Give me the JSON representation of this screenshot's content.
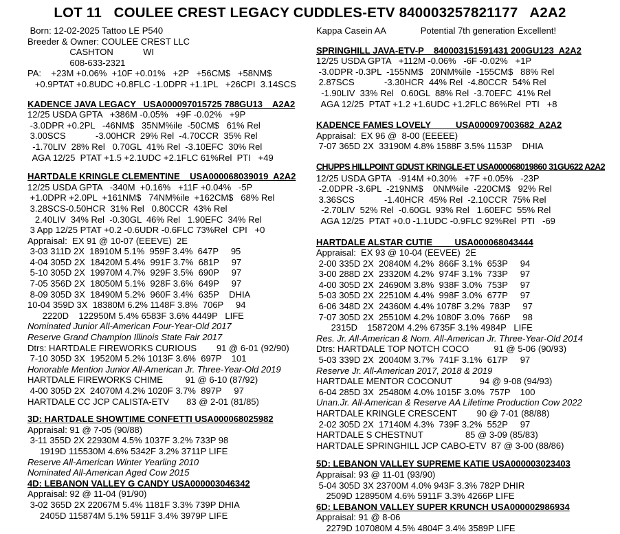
{
  "page": {
    "title": "LOT 11   COULEE CREST LEGACY CUDDLES-ETV 840003257821177   A2A2"
  },
  "columns": {
    "left": [
      {
        "name": "animal-info-block",
        "gap": 0,
        "lines": [
          {
            "text": " Born: 12-02-2025 Tattoo LE P540",
            "style": "normal"
          },
          {
            "text": "Breeder & Owner: COULEE CREST LLC",
            "style": "normal"
          },
          {
            "text": "                 CASHTON            WI",
            "style": "normal"
          },
          {
            "text": "                 608-633-2321",
            "style": "normal"
          },
          {
            "text": "PA:    +23M +0.06%  +10F +0.01%   +2P   +56CM$   +58NM$",
            "style": "normal"
          },
          {
            "text": "   +0.9PTAT +0.8UDC +0.8FLC -1.0DPR +1.1PL   +26CPI  3.14SCS",
            "style": "normal"
          }
        ]
      },
      {
        "name": "sire-section",
        "gap": 13,
        "lines": [
          {
            "text": "KADENCE JAVA LEGACY   USA000097015725 788GU13    A2A2",
            "style": "header"
          },
          {
            "text": "12/25 USDA GPTA   +386M -0.05%   +9F -0.02%   +9P",
            "style": "normal"
          },
          {
            "text": " -3.0DPR +0.2PL   -46NM$   35NM%ile  -50CM$   61% Rel",
            "style": "normal"
          },
          {
            "text": " 3.00SCS            -3.00HCR  29% Rel  -4.70CCR  35% Rel",
            "style": "normal"
          },
          {
            "text": "  -1.70LIV  28% Rel   0.70GL  41% Rel  -3.10EFC  30% Rel",
            "style": "normal"
          },
          {
            "text": "  AGA 12/25  PTAT +1.5 +2.1UDC +2.1FLC 61%Rel  PTI   +49",
            "style": "normal"
          }
        ]
      },
      {
        "name": "dam-section",
        "gap": 12,
        "lines": [
          {
            "text": "HARTDALE KRINGLE CLEMENTINE    USA000068039019  A2A2",
            "style": "header"
          },
          {
            "text": "12/25 USDA GPTA   -340M  +0.16%   +11F +0.04%   -5P",
            "style": "normal"
          },
          {
            "text": " +1.0DPR +2.0PL  +161NM$   74NM%ile  +162CM$   68% Rel",
            "style": "normal"
          },
          {
            "text": " 3.28SCS-0.50HCR  31% Rel   0.80CCR  43% Rel",
            "style": "normal"
          },
          {
            "text": "   2.40LIV  34% Rel  -0.30GL  46% Rel   1.90EFC  34% Rel",
            "style": "normal"
          },
          {
            "text": " 3 App 12/25 PTAT +0.2 -0.6UDR -0.6FLC 73%Rel  CPI   +0",
            "style": "normal"
          },
          {
            "text": "Appraisal:  EX 91 @ 10-07 (EEEVE)  2E",
            "style": "normal"
          },
          {
            "text": " 3-03 311D 2X  18910M 5.1%  959F 3.4%  647P     95",
            "style": "normal"
          },
          {
            "text": " 4-04 305D 2X  18420M 5.4%  991F 3.7%  681P     97",
            "style": "normal"
          },
          {
            "text": " 5-10 305D 2X  19970M 4.7%  929F 3.5%  690P     97",
            "style": "normal"
          },
          {
            "text": " 7-05 356D 2X  18050M 5.1%  928F 3.6%  649P     97",
            "style": "normal"
          },
          {
            "text": " 8-09 305D 3X  18490M 5.2%  960F 3.4%  635P    DHIA",
            "style": "normal"
          },
          {
            "text": "10-04 359D 3X  18380M 6.2% 1148F 3.8%  706P     94",
            "style": "normal"
          },
          {
            "text": "      2220D    122950M 5.4% 6583F 3.6% 4449P   LIFE",
            "style": "normal"
          },
          {
            "text": "Nominated Junior All-American Four-Year-Old 2017",
            "style": "italic"
          },
          {
            "text": "Reserve Grand Champion Illinois State Fair 2017",
            "style": "italic"
          },
          {
            "text": "Dtrs: HARTDALE FIREWORKS CURIOUS        91 @ 6-01 (92/90)",
            "style": "normal"
          },
          {
            "text": " 7-10 305D 3X  19520M 5.2% 1013F 3.6%  697P    101",
            "style": "normal"
          },
          {
            "text": "Honorable Mention Junior All-American Jr. Three-Year-Old 2019",
            "style": "italic"
          },
          {
            "text": "HARTDALE FIREWORKS CHIME         91 @ 6-10 (87/92)",
            "style": "normal"
          },
          {
            "text": " 4-00 305D 2X  24070M 4.2% 1020F 3.7%  897P     97",
            "style": "normal"
          },
          {
            "text": "HARTDALE CC JCP CALISTA-ETV       83 @ 2-01 (81/85)",
            "style": "normal"
          }
        ]
      },
      {
        "name": "third-dam-section",
        "gap": 10,
        "lines": [
          {
            "text": "3D: HARTDALE SHOWTIME CONFETTI USA000068025982",
            "style": "header"
          },
          {
            "text": "Appraisal: 91 @ 7-05 (90/88)",
            "style": "normal"
          },
          {
            "text": " 3-11 355D 2X 22930M 4.5% 1037F 3.2% 733P 98",
            "style": "normal"
          },
          {
            "text": "     1919D 115530M 4.6% 5342F 3.2% 3711P LIFE",
            "style": "normal"
          },
          {
            "text": "Reserve All-American Winter Yearling 2010",
            "style": "italic"
          },
          {
            "text": "Nominated All-American Aged Cow 2015",
            "style": "italic"
          }
        ]
      },
      {
        "name": "fourth-dam-section",
        "gap": 0,
        "lines": [
          {
            "text": "4D: LEBANON VALLEY G CANDY USA000003046342",
            "style": "header"
          },
          {
            "text": "Appraisal: 92 @ 11-04 (91/90)",
            "style": "normal"
          },
          {
            "text": " 3-02 365D 2X 22067M 5.4% 1181F 3.3% 739P DHIA",
            "style": "normal"
          },
          {
            "text": "     2405D 115874M 5.1% 5911F 3.4% 3979P LIFE",
            "style": "normal"
          }
        ]
      }
    ],
    "right": [
      {
        "name": "genetic-notes-block",
        "gap": 0,
        "lines": [
          {
            "text": "Kappa Casein AA              Potential 7th generation Excellent!",
            "style": "normal"
          }
        ]
      },
      {
        "name": "maternal-sire-section",
        "gap": 13,
        "lines": [
          {
            "text": "SPRINGHILL JAVA-ETV-P    840003151591431 200GU123  A2A2",
            "style": "header"
          },
          {
            "text": "12/25 USDA GPTA   +112M -0.06%   -6F -0.02%   +1P",
            "style": "normal"
          },
          {
            "text": " -3.0DPR -0.3PL  -155NM$   20NM%ile  -155CM$   88% Rel",
            "style": "normal"
          },
          {
            "text": " 2.87SCS            -3.30HCR  44% Rel  -4.80CCR  54% Rel",
            "style": "normal"
          },
          {
            "text": "  -1.90LIV  33% Rel   0.60GL  88% Rel  -3.70EFC  41% Rel",
            "style": "normal"
          },
          {
            "text": "  AGA 12/25  PTAT +1.2 +1.6UDC +1.2FLC 86%Rel  PTI   +8",
            "style": "normal"
          }
        ]
      },
      {
        "name": "kadence-fames-lovely-section",
        "gap": 15,
        "lines": [
          {
            "text": "KADENCE FAMES LOVELY          USA000097003682  A2A2",
            "style": "header"
          },
          {
            "text": "Appraisal:  EX 96 @  8-00 (EEEEE)",
            "style": "normal"
          },
          {
            "text": " 7-07 365D 2X  33190M 4.8% 1588F 3.5% 1153P    DHIA",
            "style": "normal"
          }
        ]
      },
      {
        "name": "chupps-kringle-section",
        "gap": 15,
        "lines": [
          {
            "text": "CHUPPS HILLPOINT GDUST KRINGLE-ET USA000068019860 31GU622 A2A2",
            "style": "header-condensed"
          },
          {
            "text": "12/25 USDA GPTA   -914M +0.30%   +7F +0.05%   -23P",
            "style": "normal"
          },
          {
            "text": " -2.0DPR -3.6PL  -219NM$    0NM%ile  -220CM$   92% Rel",
            "style": "normal"
          },
          {
            "text": " 3.36SCS            -1.40HCR  45% Rel  -2.10CCR  75% Rel",
            "style": "normal"
          },
          {
            "text": "  -2.70LIV  52% Rel  -0.60GL  93% Rel   1.60EFC  55% Rel",
            "style": "normal"
          },
          {
            "text": "  AGA 12/25  PTAT +0.0 -1.1UDC -0.9FLC 92%Rel  PTI   -69",
            "style": "normal"
          }
        ]
      },
      {
        "name": "hartdale-alstar-cutie-section",
        "gap": 15,
        "lines": [
          {
            "text": "HARTDALE ALSTAR CUTIE         USA000068043444",
            "style": "header"
          },
          {
            "text": "Appraisal:  EX 93 @ 10-04 (EEVEE)  2E",
            "style": "normal"
          },
          {
            "text": " 2-00 335D 2X  20840M 4.2%  866F 3.1%  653P     94",
            "style": "normal"
          },
          {
            "text": " 3-00 288D 2X  23320M 4.2%  974F 3.1%  733P     97",
            "style": "normal"
          },
          {
            "text": " 4-00 305D 2X  24690M 3.8%  938F 3.0%  753P     97",
            "style": "normal"
          },
          {
            "text": " 5-03 305D 2X  22510M 4.4%  998F 3.0%  677P     97",
            "style": "normal"
          },
          {
            "text": " 6-06 348D 2X  24360M 4.4% 1078F 3.2%  783P     97",
            "style": "normal"
          },
          {
            "text": " 7-07 305D 2X  25510M 4.2% 1080F 3.0%  766P     98",
            "style": "normal"
          },
          {
            "text": "      2315D    158720M 4.2% 6735F 3.1% 4984P   LIFE",
            "style": "normal"
          },
          {
            "text": "Res. Jr. All-American & Nom. All-American Jr. Three-Year-Old 2014",
            "style": "italic"
          },
          {
            "text": "Dtrs: HARTDALE TOP NOTCH COCO          91 @ 5-06 (90/93)",
            "style": "normal"
          },
          {
            "text": " 5-03 339D 2X  20040M 3.7%  741F 3.1%  617P     97",
            "style": "normal"
          },
          {
            "text": "Reserve Jr. All-American 2017, 2018 & 2019",
            "style": "italic"
          },
          {
            "text": "HARTDALE MENTOR COCONUT           94 @ 9-08 (94/93)",
            "style": "normal"
          },
          {
            "text": " 6-04 285D 3X  25480M 4.0% 1015F 3.0%  757P    100",
            "style": "normal"
          },
          {
            "text": "Unan.Jr. All-American & Reserve AA Lifetime Production Cow 2022",
            "style": "italic"
          },
          {
            "text": "HARTDALE KRINGLE CRESCENT        90 @ 7-01 (88/88)",
            "style": "normal"
          },
          {
            "text": " 2-02 305D 2X  17140M 4.3%  739F 3.2%  552P     97",
            "style": "normal"
          },
          {
            "text": "HARTDALE S CHESTNUT                 85 @ 3-09 (85/83)",
            "style": "normal"
          },
          {
            "text": "HARTDALE SPRINGHILL JCP CABO-ETV  87 @ 3-00 (88/86)",
            "style": "normal"
          }
        ]
      },
      {
        "name": "fifth-dam-section",
        "gap": 11,
        "lines": [
          {
            "text": "5D: LEBANON VALLEY SUPREME KATIE USA000003023403",
            "style": "header"
          },
          {
            "text": "Appraisal: 93 @ 11-01 (93/90)",
            "style": "normal"
          },
          {
            "text": " 5-04 305D 3X 23700M 4.0% 943F 3.3% 782P DHIR",
            "style": "normal"
          },
          {
            "text": "    2509D 128950M 4.6% 5911F 3.3% 4266P LIFE",
            "style": "normal"
          }
        ]
      },
      {
        "name": "sixth-dam-section",
        "gap": 0,
        "lines": [
          {
            "text": "6D: LEBANON VALLEY SUPER KRUNCH USA000002986934",
            "style": "header"
          },
          {
            "text": "Appraisal: 91 @ 8-06",
            "style": "normal"
          },
          {
            "text": "    2279D 107080M 4.5% 4804F 3.4% 3589P LIFE",
            "style": "normal"
          }
        ]
      }
    ]
  }
}
